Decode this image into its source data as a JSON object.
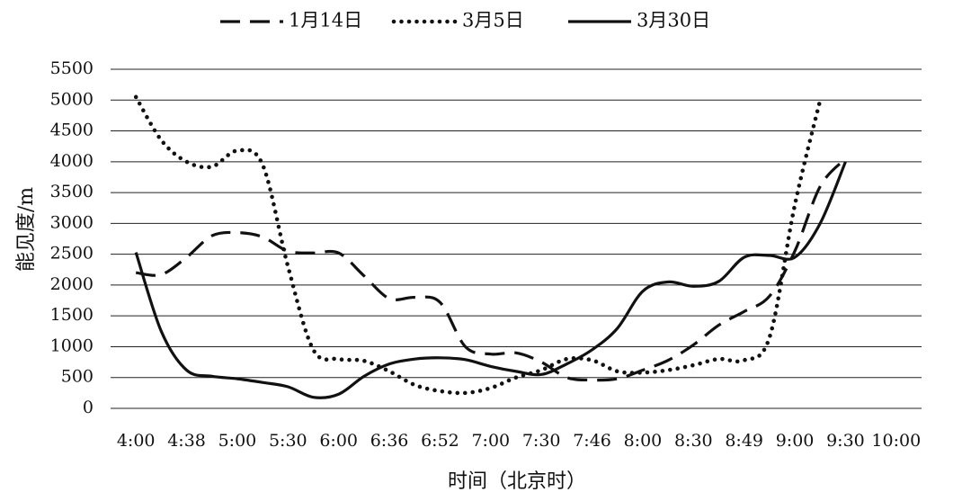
{
  "chart_data": {
    "type": "line",
    "title": "",
    "xlabel": "时间（北京时）",
    "ylabel": "能见度/m",
    "ylim": [
      0,
      5500
    ],
    "yticks": [
      "0",
      "500",
      "1000",
      "1500",
      "2000",
      "2500",
      "3000",
      "3500",
      "4000",
      "4500",
      "5000",
      "5500"
    ],
    "x": [
      "4:00",
      "4:38",
      "5:00",
      "5:30",
      "6:00",
      "6:36",
      "6:52",
      "7:00",
      "7:30",
      "7:46",
      "8:00",
      "8:30",
      "8:49",
      "9:00",
      "9:30",
      "10:00"
    ],
    "grid": "horizontal",
    "legend_position": "top",
    "series": [
      {
        "name": "1月14日",
        "style": "dashed",
        "color": "#111111",
        "points": [
          [
            0,
            2200
          ],
          [
            0.5,
            2170
          ],
          [
            1,
            2450
          ],
          [
            1.5,
            2800
          ],
          [
            2,
            2850
          ],
          [
            2.5,
            2780
          ],
          [
            3,
            2550
          ],
          [
            3.5,
            2520
          ],
          [
            4,
            2520
          ],
          [
            4.5,
            2150
          ],
          [
            5,
            1780
          ],
          [
            5.5,
            1800
          ],
          [
            6,
            1720
          ],
          [
            6.5,
            1000
          ],
          [
            7,
            880
          ],
          [
            7.5,
            900
          ],
          [
            8,
            750
          ],
          [
            8.5,
            500
          ],
          [
            9,
            460
          ],
          [
            9.5,
            480
          ],
          [
            10,
            620
          ],
          [
            10.5,
            780
          ],
          [
            11,
            1030
          ],
          [
            11.5,
            1350
          ],
          [
            12,
            1570
          ],
          [
            12.5,
            1820
          ],
          [
            13,
            2550
          ],
          [
            13.5,
            3600
          ],
          [
            14,
            4050
          ]
        ]
      },
      {
        "name": "3月5日",
        "style": "dotted",
        "color": "#111111",
        "points": [
          [
            0,
            5050
          ],
          [
            0.5,
            4350
          ],
          [
            1,
            4000
          ],
          [
            1.5,
            3920
          ],
          [
            2,
            4180
          ],
          [
            2.5,
            3950
          ],
          [
            3,
            2300
          ],
          [
            3.5,
            950
          ],
          [
            4,
            800
          ],
          [
            4.5,
            770
          ],
          [
            5,
            600
          ],
          [
            5.5,
            380
          ],
          [
            6,
            280
          ],
          [
            6.5,
            250
          ],
          [
            7,
            330
          ],
          [
            7.5,
            500
          ],
          [
            8,
            620
          ],
          [
            8.5,
            800
          ],
          [
            9,
            780
          ],
          [
            9.5,
            600
          ],
          [
            10,
            580
          ],
          [
            10.5,
            620
          ],
          [
            11,
            700
          ],
          [
            11.5,
            800
          ],
          [
            12,
            780
          ],
          [
            12.5,
            1150
          ],
          [
            13,
            3300
          ],
          [
            13.5,
            5000
          ]
        ]
      },
      {
        "name": "3月30日",
        "style": "solid",
        "color": "#111111",
        "points": [
          [
            0,
            2530
          ],
          [
            0.5,
            1250
          ],
          [
            1,
            620
          ],
          [
            1.5,
            520
          ],
          [
            2,
            480
          ],
          [
            2.5,
            420
          ],
          [
            3,
            350
          ],
          [
            3.5,
            180
          ],
          [
            4,
            230
          ],
          [
            4.5,
            520
          ],
          [
            5,
            720
          ],
          [
            5.5,
            800
          ],
          [
            6,
            820
          ],
          [
            6.5,
            790
          ],
          [
            7,
            680
          ],
          [
            7.5,
            600
          ],
          [
            8,
            550
          ],
          [
            8.5,
            720
          ],
          [
            9,
            950
          ],
          [
            9.5,
            1300
          ],
          [
            10,
            1900
          ],
          [
            10.5,
            2050
          ],
          [
            11,
            1980
          ],
          [
            11.5,
            2060
          ],
          [
            12,
            2450
          ],
          [
            12.5,
            2480
          ],
          [
            13,
            2450
          ],
          [
            13.5,
            3000
          ],
          [
            14,
            4000
          ]
        ]
      }
    ]
  }
}
